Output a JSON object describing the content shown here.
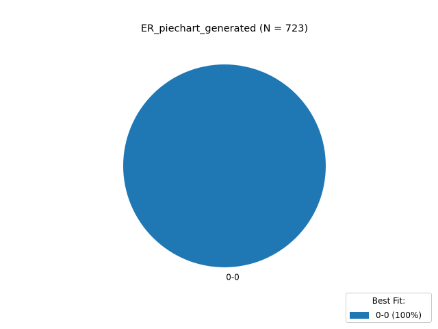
{
  "chart_data": {
    "type": "pie",
    "title": "ER_piechart_generated (N = 723)",
    "categories": [
      "0-0"
    ],
    "values": [
      100
    ],
    "colors": [
      "#1f77b4"
    ],
    "slice_labels": [
      "0-0"
    ],
    "legend": {
      "title": "Best Fit:",
      "entries": [
        "0-0 (100%)"
      ],
      "placement": "lower-right"
    }
  }
}
